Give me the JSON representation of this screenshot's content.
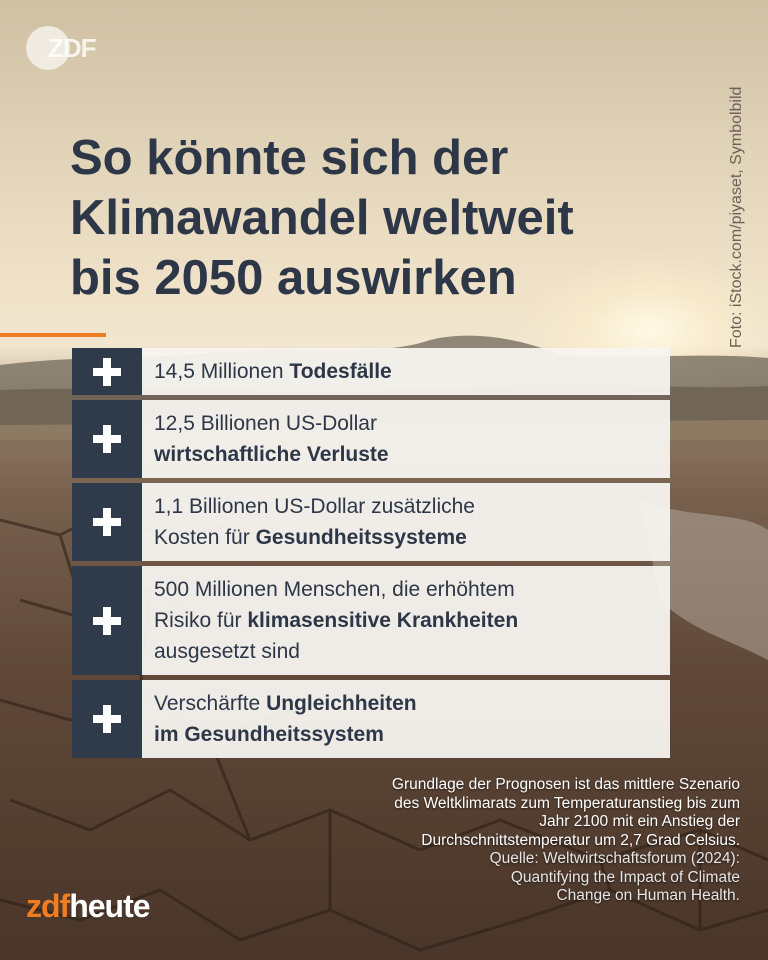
{
  "brand": {
    "zdf_corner_logo": "ZDF",
    "wordmark_zdf": "zdf",
    "wordmark_heute": "heute"
  },
  "photo_credit": "Foto: iStock.com/piyaset, Symbolbild",
  "title": {
    "line1": "So könnte sich der",
    "line2": "Klimawandel weltweit",
    "line3": "bis 2050 auswirken"
  },
  "items": [
    {
      "icon": "plus-icon",
      "lines": [
        [
          {
            "t": "14,5 Millionen ",
            "b": false
          },
          {
            "t": "Todesfälle",
            "b": true
          }
        ]
      ]
    },
    {
      "icon": "plus-icon",
      "lines": [
        [
          {
            "t": "12,5 Billionen US-Dollar",
            "b": false
          }
        ],
        [
          {
            "t": "wirtschaftliche Verluste",
            "b": true
          }
        ]
      ]
    },
    {
      "icon": "plus-icon",
      "lines": [
        [
          {
            "t": "1,1 Billionen US-Dollar zusätzliche",
            "b": false
          }
        ],
        [
          {
            "t": "Kosten für ",
            "b": false
          },
          {
            "t": "Gesundheitssysteme",
            "b": true
          }
        ]
      ]
    },
    {
      "icon": "plus-icon",
      "lines": [
        [
          {
            "t": "500 Millionen Menschen, die erhöhtem",
            "b": false
          }
        ],
        [
          {
            "t": "Risiko für ",
            "b": false
          },
          {
            "t": "klimasensitive Krankheiten",
            "b": true
          }
        ],
        [
          {
            "t": "ausgesetzt sind",
            "b": false
          }
        ]
      ]
    },
    {
      "icon": "plus-icon",
      "lines": [
        [
          {
            "t": "Verschärfte ",
            "b": false
          },
          {
            "t": "Ungleichheiten",
            "b": true
          }
        ],
        [
          {
            "t": "im Gesundheitssystem",
            "b": true
          }
        ]
      ]
    }
  ],
  "footnote": {
    "lines": [
      "Grundlage der Prognosen ist das mittlere Szenario",
      "des Weltklimarats zum Temperaturanstieg bis zum",
      "Jahr 2100 mit ein Anstieg der",
      "Durchschnittstemperatur um 2,7 Grad Celsius."
    ],
    "source_lines": [
      "Quelle: Weltwirtschaftsforum (2024):",
      "Quantifying the Impact of Climate",
      "Change on Human Health."
    ]
  },
  "colors": {
    "title": "#2d3748",
    "icon_box": "#2f3a4b",
    "accent_orange": "#f07d22",
    "card_bg": "#f7f4f0"
  }
}
